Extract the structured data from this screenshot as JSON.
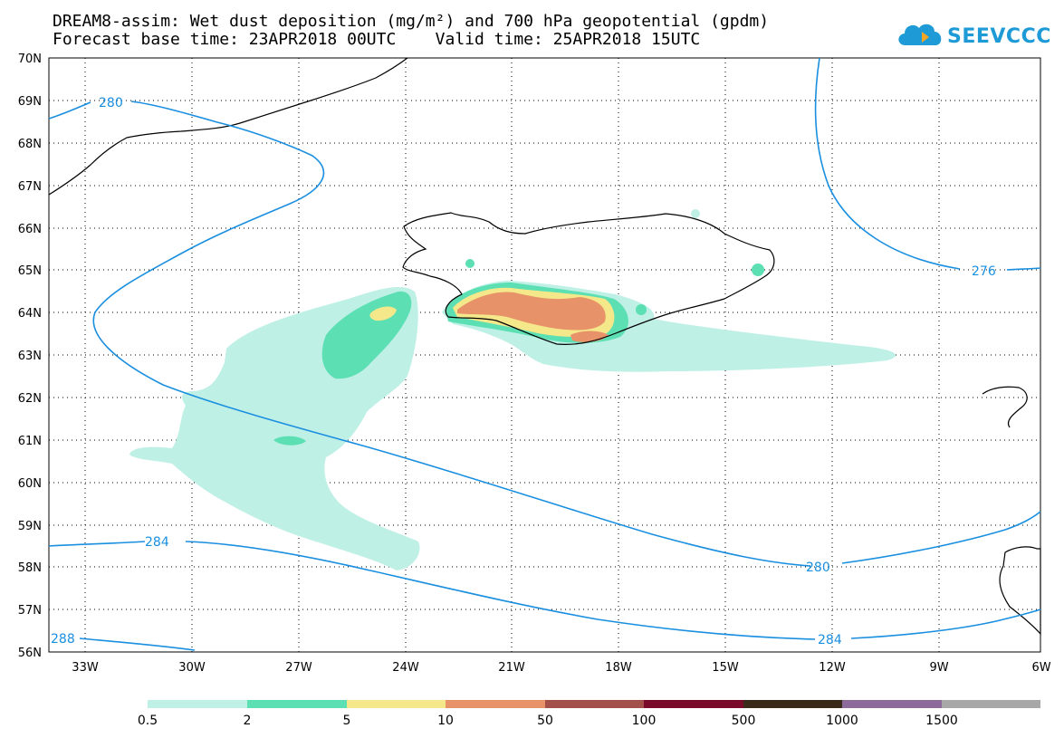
{
  "header": {
    "title_line1": "DREAM8-assim: Wet dust deposition (mg/m²) and 700 hPa geopotential (gpdm)",
    "title_line2": "Forecast base time: 23APR2018 00UTC    Valid time: 25APR2018 15UTC"
  },
  "logo": {
    "text": "SEEVCCC"
  },
  "axes": {
    "lat_labels": [
      "70N",
      "69N",
      "68N",
      "67N",
      "66N",
      "65N",
      "64N",
      "63N",
      "62N",
      "61N",
      "60N",
      "59N",
      "58N",
      "57N",
      "56N"
    ],
    "lon_labels": [
      "33W",
      "30W",
      "27W",
      "24W",
      "21W",
      "18W",
      "15W",
      "12W",
      "9W",
      "6W"
    ]
  },
  "contours": {
    "color": "#1a8fe0",
    "labels": [
      "280",
      "276",
      "284",
      "280",
      "288",
      "284"
    ]
  },
  "colorbar": {
    "ticks": [
      "0.5",
      "2",
      "5",
      "10",
      "50",
      "100",
      "500",
      "1000",
      "1500"
    ],
    "colors": [
      "#bff0e6",
      "#5ddfb4",
      "#f5e88a",
      "#e8926a",
      "#a3504a",
      "#7a0a2a",
      "#3a2a1a",
      "#8c6b9a",
      "#a8a8a8"
    ]
  }
}
